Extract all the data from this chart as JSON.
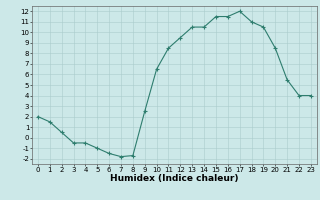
{
  "x": [
    0,
    1,
    2,
    3,
    4,
    5,
    6,
    7,
    8,
    9,
    10,
    11,
    12,
    13,
    14,
    15,
    16,
    17,
    18,
    19,
    20,
    21,
    22,
    23
  ],
  "y": [
    2.0,
    1.5,
    0.5,
    -0.5,
    -0.5,
    -1.0,
    -1.5,
    -1.8,
    -1.7,
    2.5,
    6.5,
    8.5,
    9.5,
    10.5,
    10.5,
    11.5,
    11.5,
    12.0,
    11.0,
    10.5,
    8.5,
    5.5,
    4.0,
    4.0
  ],
  "line_color": "#2e7d6e",
  "marker": "+",
  "marker_size": 3,
  "background_color": "#cce8e8",
  "grid_color": "#aacccc",
  "xlabel": "Humidex (Indice chaleur)",
  "xlim": [
    -0.5,
    23.5
  ],
  "ylim": [
    -2.5,
    12.5
  ],
  "yticks": [
    -2,
    -1,
    0,
    1,
    2,
    3,
    4,
    5,
    6,
    7,
    8,
    9,
    10,
    11,
    12
  ],
  "xticks": [
    0,
    1,
    2,
    3,
    4,
    5,
    6,
    7,
    8,
    9,
    10,
    11,
    12,
    13,
    14,
    15,
    16,
    17,
    18,
    19,
    20,
    21,
    22,
    23
  ],
  "tick_fontsize": 5,
  "xlabel_fontsize": 6.5,
  "line_width": 0.8
}
